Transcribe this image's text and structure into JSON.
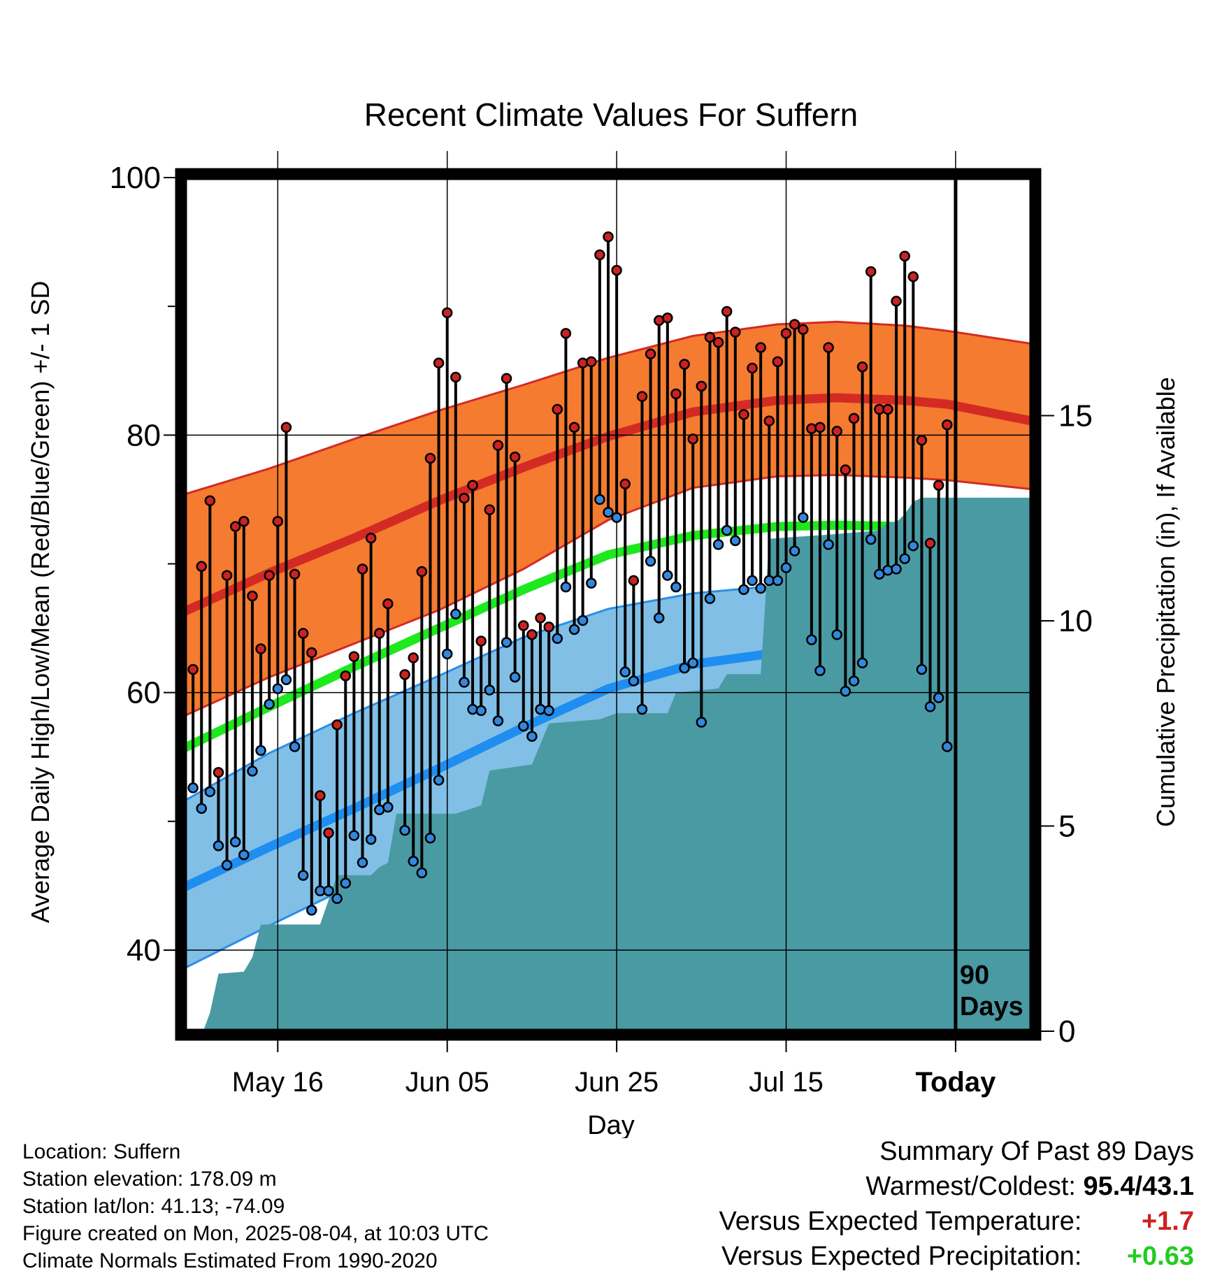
{
  "chart_data": {
    "type": "line",
    "title": "Recent Climate Values For Suffern",
    "xlabel": "Day",
    "ylabel": "Average Daily High/Low/Mean (Red/Blue/Green) +/- 1 SD",
    "y2label": "Cumulative Precipitation (in), If Available",
    "ylim": [
      33.7,
      100
    ],
    "y2lim": [
      0,
      20.8
    ],
    "yticks": [
      40,
      60,
      80,
      100
    ],
    "y2ticks": [
      0,
      5,
      10,
      15
    ],
    "xlim": [
      0,
      100
    ],
    "xticks": [
      {
        "day": 11,
        "label": "May 16"
      },
      {
        "day": 31,
        "label": "Jun 05"
      },
      {
        "day": 51,
        "label": "Jun 25"
      },
      {
        "day": 71,
        "label": "Jul 15"
      },
      {
        "day": 91,
        "label": "Today"
      }
    ],
    "today_day": 91,
    "days_label": "90 Days",
    "grid": true,
    "normals": {
      "days": [
        0,
        10,
        20,
        30,
        40,
        50,
        60,
        70,
        77,
        85,
        90,
        100
      ],
      "high_mean": [
        66.3,
        69.3,
        72.0,
        74.9,
        77.5,
        79.9,
        81.8,
        82.7,
        82.9,
        82.7,
        82.4,
        81.1
      ],
      "high_sd_top": [
        75.4,
        77.4,
        79.7,
        81.9,
        83.9,
        86.0,
        87.7,
        88.6,
        88.8,
        88.5,
        88.1,
        87.1
      ],
      "high_sd_bottom": [
        58.2,
        61.2,
        63.8,
        66.4,
        69.6,
        73.4,
        75.9,
        76.8,
        76.9,
        76.7,
        76.5,
        75.8
      ],
      "mean": [
        55.7,
        58.9,
        62.0,
        65.0,
        68.0,
        70.7,
        72.2,
        72.9,
        73.0,
        72.9,
        72.8,
        71.8
      ],
      "low_mean": [
        44.9,
        48.0,
        51.0,
        54.1,
        57.3,
        60.3,
        62.2,
        63.1,
        63.3,
        63.1,
        62.9,
        62.1
      ],
      "low_sd_top": [
        51.6,
        55.3,
        58.4,
        61.3,
        64.3,
        66.5,
        67.7,
        68.3,
        68.4,
        68.3,
        68.1,
        67.6
      ],
      "low_sd_bottom": [
        38.6,
        41.9,
        45.1,
        48.2,
        51.5,
        54.5,
        56.7,
        57.8,
        58.1,
        57.9,
        57.7,
        56.8
      ]
    },
    "series": [
      {
        "name": "High",
        "color": "#cc2222",
        "values": [
          61.8,
          69.8,
          74.9,
          53.8,
          69.1,
          72.9,
          73.3,
          67.5,
          63.4,
          69.1,
          73.3,
          80.6,
          69.2,
          64.6,
          63.1,
          52.0,
          49.1,
          57.5,
          61.3,
          62.8,
          69.6,
          72.0,
          64.6,
          66.9,
          null,
          61.4,
          62.7,
          69.4,
          78.2,
          85.6,
          89.5,
          84.5,
          75.1,
          76.1,
          64.0,
          74.2,
          79.2,
          84.4,
          78.3,
          65.2,
          64.5,
          65.8,
          65.1,
          82.0,
          87.9,
          80.6,
          85.6,
          85.7,
          94.0,
          95.4,
          92.8,
          76.2,
          68.7,
          83.0,
          86.3,
          88.9,
          89.1,
          83.2,
          85.5,
          79.7,
          83.8,
          87.6,
          87.2,
          89.6,
          88.0,
          81.6,
          85.2,
          86.8,
          81.1,
          85.7,
          87.9,
          88.6,
          88.2,
          80.5,
          80.6,
          86.8,
          80.3,
          77.3,
          81.3,
          85.3,
          92.7,
          82.0,
          82.0,
          90.4,
          93.9,
          92.3,
          79.6,
          71.6,
          76.1,
          80.8
        ]
      },
      {
        "name": "Low",
        "color": "#3388dd",
        "values": [
          52.6,
          51.0,
          52.3,
          48.1,
          46.6,
          48.4,
          47.4,
          53.9,
          55.5,
          59.1,
          60.3,
          61.0,
          55.8,
          45.8,
          43.1,
          44.6,
          44.6,
          44.0,
          45.2,
          48.9,
          46.8,
          48.6,
          50.9,
          51.1,
          null,
          49.3,
          46.9,
          46.0,
          48.7,
          53.2,
          63.0,
          66.1,
          60.8,
          58.7,
          58.6,
          60.2,
          57.8,
          63.9,
          61.2,
          57.4,
          56.6,
          58.7,
          58.6,
          64.2,
          68.2,
          64.9,
          65.6,
          68.5,
          75.0,
          74.0,
          73.6,
          61.6,
          60.9,
          58.7,
          70.2,
          65.8,
          69.1,
          68.2,
          61.9,
          62.3,
          57.7,
          67.3,
          71.5,
          72.6,
          71.8,
          68.0,
          68.7,
          68.1,
          68.7,
          68.7,
          69.7,
          71.0,
          73.6,
          64.1,
          61.7,
          71.5,
          64.5,
          60.1,
          60.9,
          62.3,
          71.9,
          69.2,
          69.5,
          69.6,
          70.4,
          71.4,
          61.8,
          58.9,
          59.6,
          55.8
        ]
      },
      {
        "name": "Precipitation",
        "color": "#4a9aa3",
        "points": [
          [
            1.5,
            0
          ],
          [
            2.2,
            0
          ],
          [
            3.0,
            0.45
          ],
          [
            4,
            1.4
          ],
          [
            7,
            1.45
          ],
          [
            8,
            1.8
          ],
          [
            9,
            2.6
          ],
          [
            16,
            2.6
          ],
          [
            17,
            3.2
          ],
          [
            18,
            3.8
          ],
          [
            22,
            3.8
          ],
          [
            23,
            4.0
          ],
          [
            24,
            4.1
          ],
          [
            25,
            5.3
          ],
          [
            32,
            5.3
          ],
          [
            35,
            5.5
          ],
          [
            36,
            6.35
          ],
          [
            41,
            6.5
          ],
          [
            43,
            7.5
          ],
          [
            49,
            7.6
          ],
          [
            51,
            7.75
          ],
          [
            57,
            7.75
          ],
          [
            58,
            8.25
          ],
          [
            63,
            8.35
          ],
          [
            64,
            8.7
          ],
          [
            68,
            8.7
          ],
          [
            69,
            12.0
          ],
          [
            76,
            12.1
          ],
          [
            82,
            12.2
          ],
          [
            83,
            12.4
          ],
          [
            84,
            12.4
          ],
          [
            85,
            12.6
          ],
          [
            86,
            12.9
          ],
          [
            87,
            13.0
          ],
          [
            100,
            13.0
          ]
        ]
      }
    ],
    "legend": "none"
  },
  "footer": {
    "location": "Location: Suffern",
    "elevation": "Station elevation: 178.09 m",
    "latlon": "Station lat/lon: 41.13; -74.09",
    "created": "Figure created on Mon, 2025-08-04, at 10:03 UTC",
    "normals": "Climate Normals Estimated From 1990-2020"
  },
  "summary": {
    "title": "Summary Of Past 89 Days",
    "warmest_label": "Warmest/Coldest:",
    "warmest_value": "95.4/43.1",
    "temp_label": "Versus Expected Temperature:",
    "temp_value": "+1.7",
    "temp_color": "#cc2222",
    "precip_label": "Versus Expected Precipitation:",
    "precip_value": "+0.63",
    "precip_color": "#22cc22"
  }
}
